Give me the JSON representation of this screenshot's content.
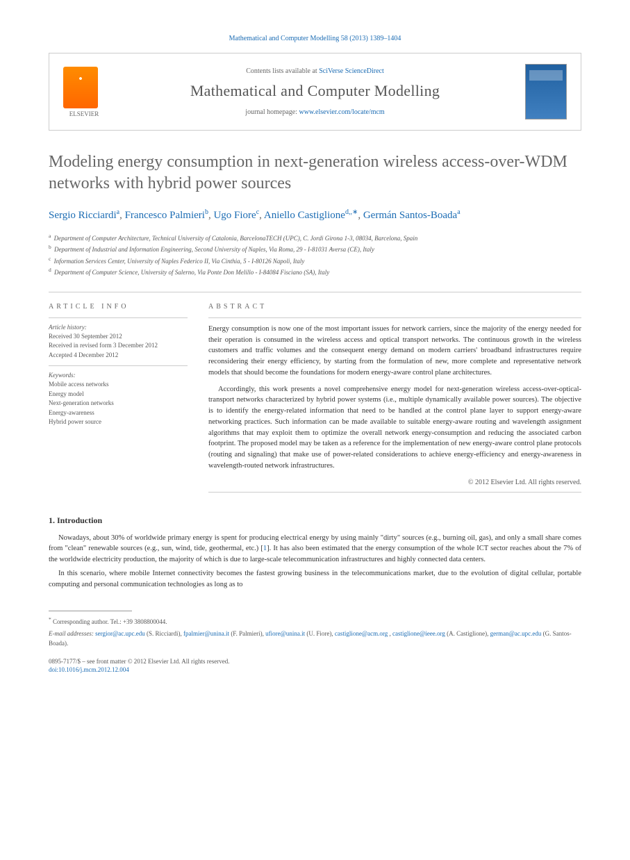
{
  "header": {
    "citation_prefix": "Mathematical and Computer Modelling 58 (2013) 1389–1404",
    "contents_text": "Contents lists available at ",
    "contents_link": "SciVerse ScienceDirect",
    "journal_title": "Mathematical and Computer Modelling",
    "homepage_text": "journal homepage: ",
    "homepage_link": "www.elsevier.com/locate/mcm",
    "elsevier_label": "ELSEVIER"
  },
  "article": {
    "title": "Modeling energy consumption in next-generation wireless access-over-WDM networks with hybrid power sources",
    "authors_html": "Sergio Ricciardi|a|, Francesco Palmieri|b|, Ugo Fiore|c|, Aniello Castiglione|d,*|, Germán Santos-Boada|a|"
  },
  "affiliations": [
    {
      "sup": "a",
      "text": "Department of Computer Architecture, Technical University of Catalonia, BarcelonaTECH (UPC), C. Jordi Girona 1-3, 08034, Barcelona, Spain"
    },
    {
      "sup": "b",
      "text": "Department of Industrial and Information Engineering, Second University of Naples, Via Roma, 29 - I-81031 Aversa (CE), Italy"
    },
    {
      "sup": "c",
      "text": "Information Services Center, University of Naples Federico II, Via Cinthia, 5 - I-80126 Napoli, Italy"
    },
    {
      "sup": "d",
      "text": "Department of Computer Science, University of Salerno, Via Ponte Don Melillo - I-84084 Fisciano (SA), Italy"
    }
  ],
  "info": {
    "heading": "ARTICLE INFO",
    "history_label": "Article history:",
    "history": [
      "Received 30 September 2012",
      "Received in revised form 3 December 2012",
      "Accepted 4 December 2012"
    ],
    "keywords_label": "Keywords:",
    "keywords": [
      "Mobile access networks",
      "Energy model",
      "Next-generation networks",
      "Energy-awareness",
      "Hybrid power source"
    ]
  },
  "abstract": {
    "heading": "ABSTRACT",
    "paragraphs": [
      "Energy consumption is now one of the most important issues for network carriers, since the majority of the energy needed for their operation is consumed in the wireless access and optical transport networks. The continuous growth in the wireless customers and traffic volumes and the consequent energy demand on modern carriers' broadband infrastructures require reconsidering their energy efficiency, by starting from the formulation of new, more complete and representative network models that should become the foundations for modern energy-aware control plane architectures.",
      "Accordingly, this work presents a novel comprehensive energy model for next-generation wireless access-over-optical-transport networks characterized by hybrid power systems (i.e., multiple dynamically available power sources). The objective is to identify the energy-related information that need to be handled at the control plane layer to support energy-aware networking practices. Such information can be made available to suitable energy-aware routing and wavelength assignment algorithms that may exploit them to optimize the overall network energy-consumption and reducing the associated carbon footprint. The proposed model may be taken as a reference for the implementation of new energy-aware control plane protocols (routing and signaling) that make use of power-related considerations to achieve energy-efficiency and energy-awareness in wavelength-routed network infrastructures."
    ],
    "copyright": "© 2012 Elsevier Ltd. All rights reserved."
  },
  "sections": {
    "intro_heading": "1. Introduction",
    "intro_paragraphs": [
      "Nowadays, about 30% of worldwide primary energy is spent for producing electrical energy by using mainly \"dirty\" sources (e.g., burning oil, gas), and only a small share comes from \"clean\" renewable sources (e.g., sun, wind, tide, geothermal, etc.) [1]. It has also been estimated that the energy consumption of the whole ICT sector reaches about the 7% of the worldwide electricity production, the majority of which is due to large-scale telecommunication infrastructures and highly connected data centers.",
      "In this scenario, where mobile Internet connectivity becomes the fastest growing business in the telecommunications market, due to the evolution of digital cellular, portable computing and personal communication technologies as long as to"
    ]
  },
  "footer": {
    "corresponding_label": "Corresponding author. Tel.: +39 3808800044.",
    "email_label": "E-mail addresses:",
    "emails": [
      {
        "addr": "sergior@ac.upc.edu",
        "name": "(S. Ricciardi)"
      },
      {
        "addr": "fpalmier@unina.it",
        "name": "(F. Palmieri)"
      },
      {
        "addr": "ufiore@unina.it",
        "name": "(U. Fiore)"
      },
      {
        "addr": "castiglione@acm.org",
        "name": ""
      },
      {
        "addr": "castiglione@ieee.org",
        "name": "(A. Castiglione)"
      },
      {
        "addr": "german@ac.upc.edu",
        "name": "(G. Santos-Boada)."
      }
    ],
    "issn_line": "0895-7177/$ – see front matter © 2012 Elsevier Ltd. All rights reserved.",
    "doi_label": "doi:",
    "doi": "10.1016/j.mcm.2012.12.004"
  }
}
